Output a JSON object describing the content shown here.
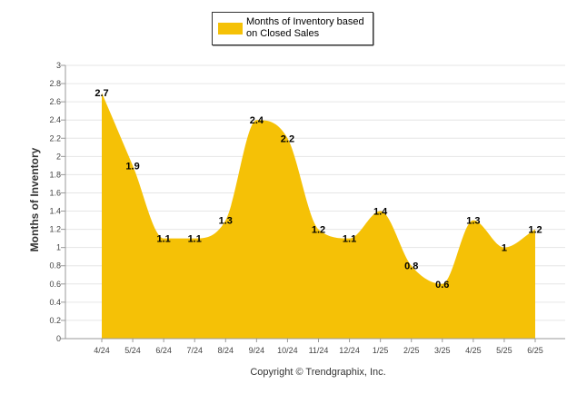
{
  "chart_data": {
    "type": "area",
    "categories": [
      "4/24",
      "5/24",
      "6/24",
      "7/24",
      "8/24",
      "9/24",
      "10/24",
      "11/24",
      "12/24",
      "1/25",
      "2/25",
      "3/25",
      "4/25",
      "5/25",
      "6/25"
    ],
    "series": [
      {
        "name": "Months of Inventory based on Closed Sales",
        "values": [
          2.7,
          1.9,
          1.1,
          1.1,
          1.3,
          2.4,
          2.2,
          1.2,
          1.1,
          1.4,
          0.8,
          0.6,
          1.3,
          1.0,
          1.2
        ],
        "data_labels": [
          "2.7",
          "1.9",
          "1.1",
          "1.1",
          "1.3",
          "2.4",
          "2.2",
          "1.2",
          "1.1",
          "1.4",
          "0.8",
          "0.6",
          "1.3",
          "1",
          "1.2"
        ],
        "color": "#F5C106"
      }
    ],
    "legend": {
      "lines": [
        "Months of Inventory based",
        "on Closed Sales"
      ],
      "placement": "top-center"
    },
    "ylabel": "Months of Inventory",
    "xlabel": "",
    "ylim": [
      0,
      3
    ],
    "yticks": [
      "0",
      "0.2",
      "0.4",
      "0.6",
      "0.8",
      "1",
      "1.2",
      "1.4",
      "1.6",
      "1.8",
      "2",
      "2.2",
      "2.4",
      "2.6",
      "2.8",
      "3"
    ],
    "grid": true,
    "footer": "Copyright © Trendgraphix, Inc."
  }
}
